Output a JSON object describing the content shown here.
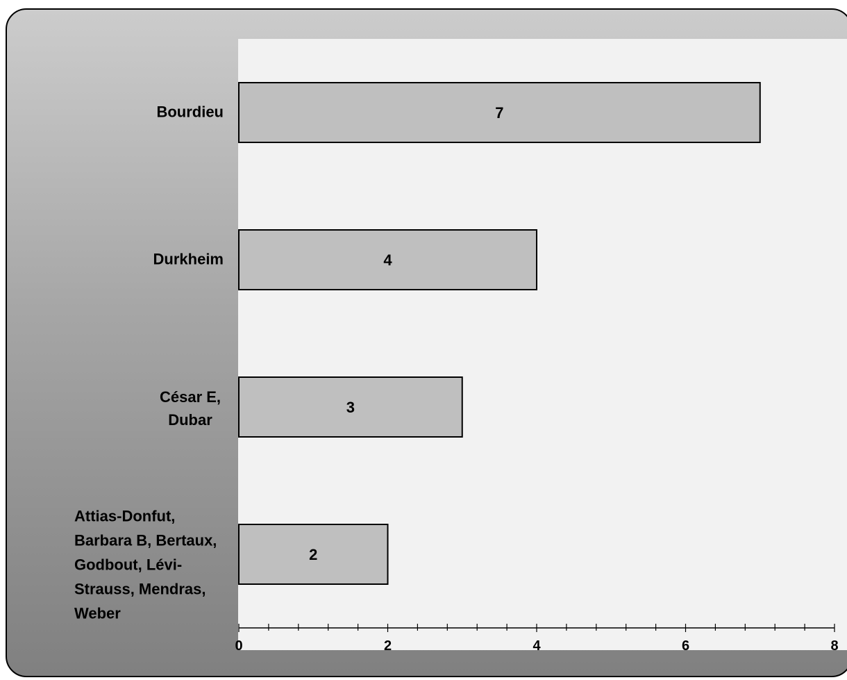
{
  "chart_data": {
    "type": "bar",
    "orientation": "horizontal",
    "categories": [
      "Bourdieu",
      "Durkheim",
      "César E, Dubar",
      "Attias-Donfut, Barbara B, Bertaux, Godbout, Lévi-Strauss, Mendras, Weber"
    ],
    "category_lines": [
      [
        "Bourdieu"
      ],
      [
        "Durkheim"
      ],
      [
        "César E,",
        "Dubar"
      ],
      [
        "Attias-Donfut,",
        "Barbara B, Bertaux,",
        "Godbout, Lévi-",
        "Strauss, Mendras,",
        "Weber"
      ]
    ],
    "values": [
      7,
      4,
      3,
      2
    ],
    "data_labels": [
      "7",
      "4",
      "3",
      "2"
    ],
    "xlim": [
      0,
      8
    ],
    "x_major_ticks": [
      0,
      2,
      4,
      6,
      8
    ],
    "x_tick_labels": [
      "0",
      "2",
      "4",
      "6",
      "8"
    ],
    "x_minor_step": 0.4,
    "title": "",
    "xlabel": "",
    "ylabel": "",
    "grid": false,
    "legend": "none",
    "colors": {
      "bar_fill": "#bfbfbf",
      "bar_stroke": "#000000",
      "plot_background": "#f2f2f2",
      "frame_gradient_top": "#cccccc",
      "frame_gradient_bottom": "#808080"
    }
  }
}
